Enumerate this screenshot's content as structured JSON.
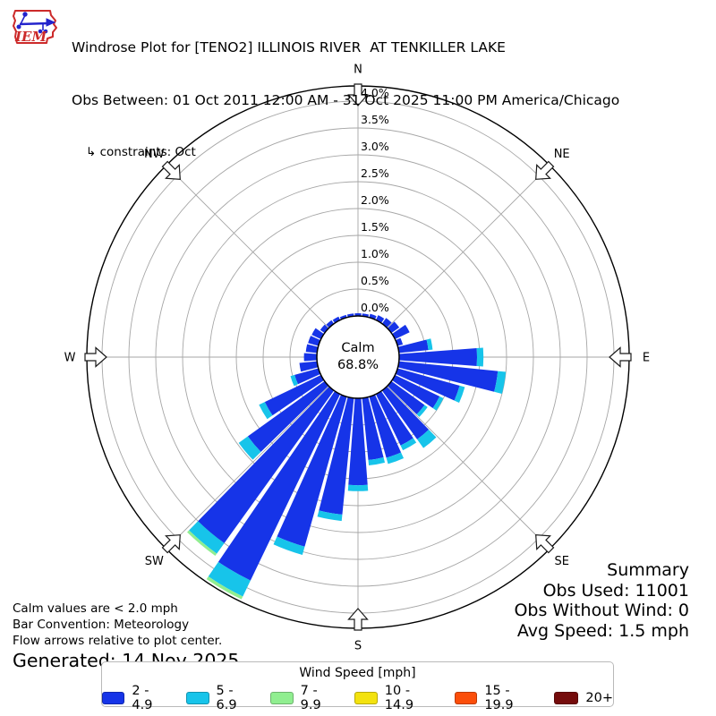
{
  "header": {
    "title": "Windrose Plot for [TENO2] ILLINOIS RIVER  AT TENKILLER LAKE",
    "subtitle": "Obs Between: 01 Oct 2011 12:00 AM - 31 Oct 2025 11:00 PM America/Chicago",
    "constraints": "↳ constraints: Oct",
    "logo_text": "IEM"
  },
  "summary": {
    "heading": "Summary",
    "lines": [
      "Obs Used: 11001",
      "Obs Without Wind: 0",
      "Avg Speed: 1.5 mph"
    ]
  },
  "footer": {
    "lines": [
      "Calm values are < 2.0 mph",
      "Bar Convention: Meteorology",
      "Flow arrows relative to plot center."
    ],
    "generated": "Generated: 14 Nov 2025"
  },
  "legend": {
    "title": "Wind Speed [mph]",
    "items": [
      {
        "label": "2 - 4.9",
        "color": "#1634e8"
      },
      {
        "label": "5 - 6.9",
        "color": "#17c4ea"
      },
      {
        "label": "7 - 9.9",
        "color": "#90ee90"
      },
      {
        "label": "10 - 14.9",
        "color": "#f3e20f"
      },
      {
        "label": "15 - 19.9",
        "color": "#fb4e0a"
      },
      {
        "label": "20+",
        "color": "#750c0c"
      }
    ]
  },
  "chart_data": {
    "type": "windrose",
    "units": "mph",
    "calm": {
      "label": "Calm",
      "pct_label": "68.8%"
    },
    "r_axis": {
      "min": 0.0,
      "max": 4.0,
      "step": 0.5,
      "tick_suffix": "%"
    },
    "compass": [
      {
        "label": "N",
        "deg": 0
      },
      {
        "label": "NE",
        "deg": 45
      },
      {
        "label": "E",
        "deg": 90
      },
      {
        "label": "SE",
        "deg": 135
      },
      {
        "label": "S",
        "deg": 180
      },
      {
        "label": "SW",
        "deg": 225
      },
      {
        "label": "W",
        "deg": 270
      },
      {
        "label": "NW",
        "deg": 315
      }
    ],
    "speed_bin_labels": [
      "2 - 4.9",
      "5 - 6.9",
      "7 - 9.9",
      "10 - 14.9",
      "15 - 19.9",
      "20+"
    ],
    "directions": [
      {
        "deg": 0,
        "cum": [
          0.05
        ]
      },
      {
        "deg": 10,
        "cum": [
          0.05
        ]
      },
      {
        "deg": 20,
        "cum": [
          0.07
        ]
      },
      {
        "deg": 30,
        "cum": [
          0.1
        ]
      },
      {
        "deg": 40,
        "cum": [
          0.13
        ]
      },
      {
        "deg": 50,
        "cum": [
          0.18
        ]
      },
      {
        "deg": 60,
        "cum": [
          0.3
        ]
      },
      {
        "deg": 70,
        "cum": [
          0.1
        ]
      },
      {
        "deg": 80,
        "cum": [
          0.55,
          0.63
        ]
      },
      {
        "deg": 90,
        "cum": [
          1.45,
          1.57
        ]
      },
      {
        "deg": 100,
        "cum": [
          1.85,
          2.0
        ]
      },
      {
        "deg": 110,
        "cum": [
          1.2,
          1.3
        ]
      },
      {
        "deg": 120,
        "cum": [
          0.92,
          1.0
        ]
      },
      {
        "deg": 130,
        "cum": [
          0.76,
          0.83
        ]
      },
      {
        "deg": 140,
        "cum": [
          1.12,
          1.32
        ]
      },
      {
        "deg": 150,
        "cum": [
          1.06,
          1.16
        ]
      },
      {
        "deg": 160,
        "cum": [
          1.18,
          1.3
        ]
      },
      {
        "deg": 170,
        "cum": [
          1.16,
          1.26
        ]
      },
      {
        "deg": 180,
        "cum": [
          1.62,
          1.73
        ]
      },
      {
        "deg": 190,
        "cum": [
          2.18,
          2.3
        ]
      },
      {
        "deg": 200,
        "cum": [
          2.9,
          3.06
        ]
      },
      {
        "deg": 210,
        "cum": [
          3.85,
          4.18,
          4.24
        ]
      },
      {
        "deg": 220,
        "cum": [
          3.5,
          3.74,
          3.79
        ]
      },
      {
        "deg": 230,
        "cum": [
          1.76,
          1.97
        ]
      },
      {
        "deg": 240,
        "cum": [
          1.16,
          1.28
        ]
      },
      {
        "deg": 250,
        "cum": [
          0.46,
          0.54
        ]
      },
      {
        "deg": 260,
        "cum": [
          0.33
        ]
      },
      {
        "deg": 270,
        "cum": [
          0.24
        ]
      },
      {
        "deg": 280,
        "cum": [
          0.21
        ]
      },
      {
        "deg": 290,
        "cum": [
          0.2
        ]
      },
      {
        "deg": 300,
        "cum": [
          0.19
        ]
      },
      {
        "deg": 310,
        "cum": [
          0.1
        ]
      },
      {
        "deg": 320,
        "cum": [
          0.08
        ]
      },
      {
        "deg": 330,
        "cum": [
          0.07
        ]
      },
      {
        "deg": 340,
        "cum": [
          0.05
        ]
      },
      {
        "deg": 350,
        "cum": [
          0.05
        ]
      }
    ]
  }
}
